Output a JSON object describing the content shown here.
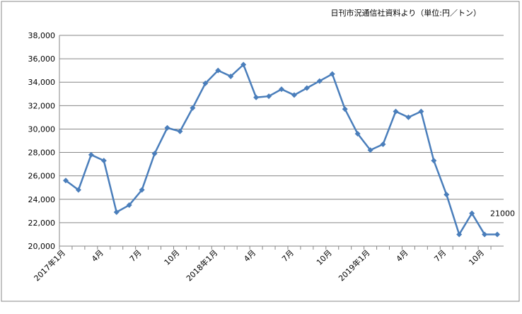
{
  "chart_data": {
    "type": "line",
    "source": "日刊市況通信社資料より（単位:円／トン）",
    "categories": [
      "2017年1月",
      null,
      null,
      "4月",
      null,
      null,
      "7月",
      null,
      null,
      "10月",
      null,
      null,
      "2018年1月",
      null,
      null,
      "4月",
      null,
      null,
      "7月",
      null,
      null,
      "10月",
      null,
      null,
      "2019年1月",
      null,
      null,
      "4月",
      null,
      null,
      "7月",
      null,
      null,
      "10月",
      null
    ],
    "series": [
      {
        "color": "#4a7ebb",
        "values": [
          25600,
          24800,
          27800,
          27300,
          22900,
          23500,
          24800,
          27900,
          30100,
          29800,
          31800,
          33900,
          35000,
          34500,
          35500,
          32700,
          32800,
          33400,
          32900,
          33500,
          34100,
          34700,
          31700,
          29600,
          28200,
          28700,
          31500,
          31000,
          31500,
          27300,
          24400,
          21000,
          22800,
          21000,
          21000
        ]
      }
    ],
    "labelled_point": 34,
    "ylim": [
      20000,
      38000
    ],
    "yticks": [
      {
        "value": 20000,
        "label": "20,000"
      },
      {
        "value": 22000,
        "label": "22,000"
      },
      {
        "value": 24000,
        "label": "24,000"
      },
      {
        "value": 26000,
        "label": "26,000"
      },
      {
        "value": 28000,
        "label": "28,000"
      },
      {
        "value": 30000,
        "label": "30,000"
      },
      {
        "value": 32000,
        "label": "32,000"
      },
      {
        "value": 34000,
        "label": "34,000"
      },
      {
        "value": 36000,
        "label": "36,000"
      },
      {
        "value": 38000,
        "label": "38,000"
      }
    ],
    "grid": true
  }
}
